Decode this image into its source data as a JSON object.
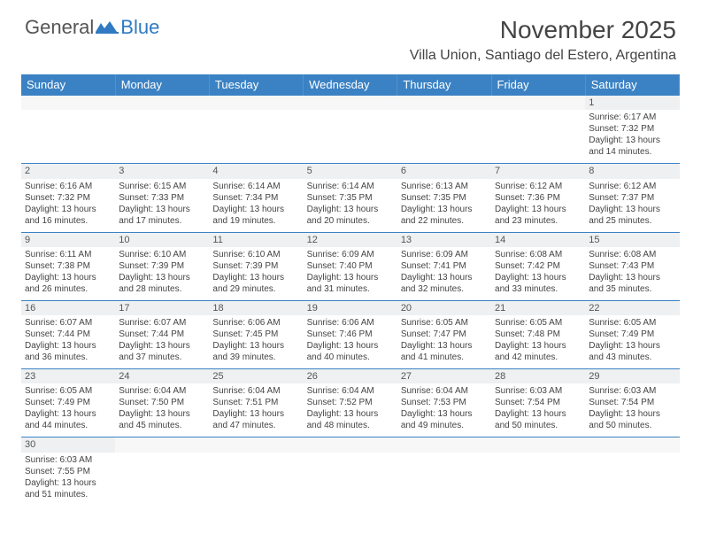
{
  "logo": {
    "part1": "General",
    "part2": "Blue"
  },
  "title": "November 2025",
  "location": "Villa Union, Santiago del Estero, Argentina",
  "weekdays": [
    "Sunday",
    "Monday",
    "Tuesday",
    "Wednesday",
    "Thursday",
    "Friday",
    "Saturday"
  ],
  "colors": {
    "header_bg": "#3b82c4",
    "header_text": "#ffffff",
    "daynum_bg": "#eef0f2",
    "border": "#3b82c4",
    "text": "#444444",
    "logo_gray": "#555555",
    "logo_blue": "#2f7ac2"
  },
  "weeks": [
    [
      null,
      null,
      null,
      null,
      null,
      null,
      {
        "n": "1",
        "sunrise": "Sunrise: 6:17 AM",
        "sunset": "Sunset: 7:32 PM",
        "daylight": "Daylight: 13 hours and 14 minutes."
      }
    ],
    [
      {
        "n": "2",
        "sunrise": "Sunrise: 6:16 AM",
        "sunset": "Sunset: 7:32 PM",
        "daylight": "Daylight: 13 hours and 16 minutes."
      },
      {
        "n": "3",
        "sunrise": "Sunrise: 6:15 AM",
        "sunset": "Sunset: 7:33 PM",
        "daylight": "Daylight: 13 hours and 17 minutes."
      },
      {
        "n": "4",
        "sunrise": "Sunrise: 6:14 AM",
        "sunset": "Sunset: 7:34 PM",
        "daylight": "Daylight: 13 hours and 19 minutes."
      },
      {
        "n": "5",
        "sunrise": "Sunrise: 6:14 AM",
        "sunset": "Sunset: 7:35 PM",
        "daylight": "Daylight: 13 hours and 20 minutes."
      },
      {
        "n": "6",
        "sunrise": "Sunrise: 6:13 AM",
        "sunset": "Sunset: 7:35 PM",
        "daylight": "Daylight: 13 hours and 22 minutes."
      },
      {
        "n": "7",
        "sunrise": "Sunrise: 6:12 AM",
        "sunset": "Sunset: 7:36 PM",
        "daylight": "Daylight: 13 hours and 23 minutes."
      },
      {
        "n": "8",
        "sunrise": "Sunrise: 6:12 AM",
        "sunset": "Sunset: 7:37 PM",
        "daylight": "Daylight: 13 hours and 25 minutes."
      }
    ],
    [
      {
        "n": "9",
        "sunrise": "Sunrise: 6:11 AM",
        "sunset": "Sunset: 7:38 PM",
        "daylight": "Daylight: 13 hours and 26 minutes."
      },
      {
        "n": "10",
        "sunrise": "Sunrise: 6:10 AM",
        "sunset": "Sunset: 7:39 PM",
        "daylight": "Daylight: 13 hours and 28 minutes."
      },
      {
        "n": "11",
        "sunrise": "Sunrise: 6:10 AM",
        "sunset": "Sunset: 7:39 PM",
        "daylight": "Daylight: 13 hours and 29 minutes."
      },
      {
        "n": "12",
        "sunrise": "Sunrise: 6:09 AM",
        "sunset": "Sunset: 7:40 PM",
        "daylight": "Daylight: 13 hours and 31 minutes."
      },
      {
        "n": "13",
        "sunrise": "Sunrise: 6:09 AM",
        "sunset": "Sunset: 7:41 PM",
        "daylight": "Daylight: 13 hours and 32 minutes."
      },
      {
        "n": "14",
        "sunrise": "Sunrise: 6:08 AM",
        "sunset": "Sunset: 7:42 PM",
        "daylight": "Daylight: 13 hours and 33 minutes."
      },
      {
        "n": "15",
        "sunrise": "Sunrise: 6:08 AM",
        "sunset": "Sunset: 7:43 PM",
        "daylight": "Daylight: 13 hours and 35 minutes."
      }
    ],
    [
      {
        "n": "16",
        "sunrise": "Sunrise: 6:07 AM",
        "sunset": "Sunset: 7:44 PM",
        "daylight": "Daylight: 13 hours and 36 minutes."
      },
      {
        "n": "17",
        "sunrise": "Sunrise: 6:07 AM",
        "sunset": "Sunset: 7:44 PM",
        "daylight": "Daylight: 13 hours and 37 minutes."
      },
      {
        "n": "18",
        "sunrise": "Sunrise: 6:06 AM",
        "sunset": "Sunset: 7:45 PM",
        "daylight": "Daylight: 13 hours and 39 minutes."
      },
      {
        "n": "19",
        "sunrise": "Sunrise: 6:06 AM",
        "sunset": "Sunset: 7:46 PM",
        "daylight": "Daylight: 13 hours and 40 minutes."
      },
      {
        "n": "20",
        "sunrise": "Sunrise: 6:05 AM",
        "sunset": "Sunset: 7:47 PM",
        "daylight": "Daylight: 13 hours and 41 minutes."
      },
      {
        "n": "21",
        "sunrise": "Sunrise: 6:05 AM",
        "sunset": "Sunset: 7:48 PM",
        "daylight": "Daylight: 13 hours and 42 minutes."
      },
      {
        "n": "22",
        "sunrise": "Sunrise: 6:05 AM",
        "sunset": "Sunset: 7:49 PM",
        "daylight": "Daylight: 13 hours and 43 minutes."
      }
    ],
    [
      {
        "n": "23",
        "sunrise": "Sunrise: 6:05 AM",
        "sunset": "Sunset: 7:49 PM",
        "daylight": "Daylight: 13 hours and 44 minutes."
      },
      {
        "n": "24",
        "sunrise": "Sunrise: 6:04 AM",
        "sunset": "Sunset: 7:50 PM",
        "daylight": "Daylight: 13 hours and 45 minutes."
      },
      {
        "n": "25",
        "sunrise": "Sunrise: 6:04 AM",
        "sunset": "Sunset: 7:51 PM",
        "daylight": "Daylight: 13 hours and 47 minutes."
      },
      {
        "n": "26",
        "sunrise": "Sunrise: 6:04 AM",
        "sunset": "Sunset: 7:52 PM",
        "daylight": "Daylight: 13 hours and 48 minutes."
      },
      {
        "n": "27",
        "sunrise": "Sunrise: 6:04 AM",
        "sunset": "Sunset: 7:53 PM",
        "daylight": "Daylight: 13 hours and 49 minutes."
      },
      {
        "n": "28",
        "sunrise": "Sunrise: 6:03 AM",
        "sunset": "Sunset: 7:54 PM",
        "daylight": "Daylight: 13 hours and 50 minutes."
      },
      {
        "n": "29",
        "sunrise": "Sunrise: 6:03 AM",
        "sunset": "Sunset: 7:54 PM",
        "daylight": "Daylight: 13 hours and 50 minutes."
      }
    ],
    [
      {
        "n": "30",
        "sunrise": "Sunrise: 6:03 AM",
        "sunset": "Sunset: 7:55 PM",
        "daylight": "Daylight: 13 hours and 51 minutes."
      },
      null,
      null,
      null,
      null,
      null,
      null
    ]
  ]
}
